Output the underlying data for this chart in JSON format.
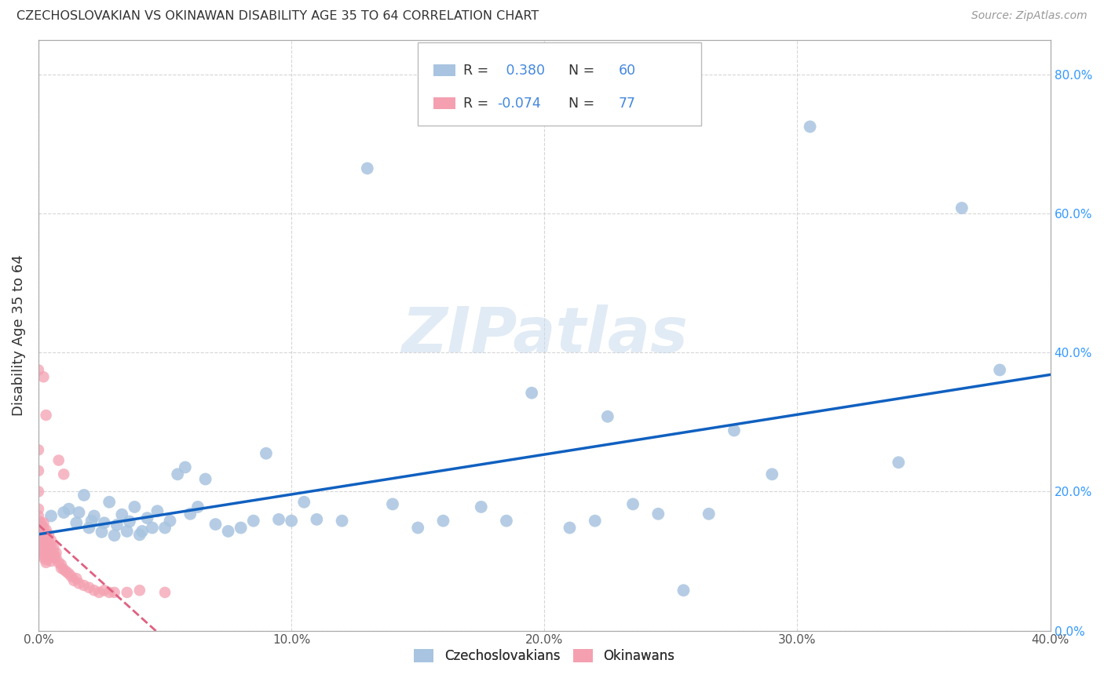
{
  "title": "CZECHOSLOVAKIAN VS OKINAWAN DISABILITY AGE 35 TO 64 CORRELATION CHART",
  "source": "Source: ZipAtlas.com",
  "ylabel": "Disability Age 35 to 64",
  "xlim": [
    0.0,
    0.4
  ],
  "ylim": [
    0.0,
    0.85
  ],
  "x_ticks": [
    0.0,
    0.1,
    0.2,
    0.3,
    0.4
  ],
  "y_ticks": [
    0.0,
    0.2,
    0.4,
    0.6,
    0.8
  ],
  "blue_R": 0.38,
  "blue_N": 60,
  "pink_R": -0.074,
  "pink_N": 77,
  "blue_color": "#a8c4e0",
  "pink_color": "#f4a0b0",
  "blue_line_color": "#1060c0",
  "pink_line_color": "#e06080",
  "r_value_color": "#4488dd",
  "watermark_color": "#c5d8ed",
  "legend_label_blue": "Czechoslovakians",
  "legend_label_pink": "Okinawans",
  "blue_x": [
    0.005,
    0.01,
    0.012,
    0.015,
    0.016,
    0.018,
    0.02,
    0.021,
    0.022,
    0.025,
    0.026,
    0.028,
    0.03,
    0.031,
    0.033,
    0.035,
    0.036,
    0.038,
    0.04,
    0.041,
    0.043,
    0.045,
    0.047,
    0.05,
    0.052,
    0.055,
    0.058,
    0.06,
    0.063,
    0.066,
    0.07,
    0.075,
    0.08,
    0.085,
    0.09,
    0.095,
    0.1,
    0.105,
    0.11,
    0.12,
    0.13,
    0.14,
    0.15,
    0.16,
    0.175,
    0.185,
    0.195,
    0.21,
    0.22,
    0.225,
    0.235,
    0.245,
    0.255,
    0.265,
    0.275,
    0.29,
    0.305,
    0.34,
    0.365,
    0.38
  ],
  "blue_y": [
    0.165,
    0.17,
    0.175,
    0.155,
    0.17,
    0.195,
    0.148,
    0.158,
    0.165,
    0.142,
    0.155,
    0.185,
    0.137,
    0.152,
    0.167,
    0.143,
    0.157,
    0.178,
    0.138,
    0.143,
    0.162,
    0.148,
    0.172,
    0.148,
    0.158,
    0.225,
    0.235,
    0.168,
    0.178,
    0.218,
    0.153,
    0.143,
    0.148,
    0.158,
    0.255,
    0.16,
    0.158,
    0.185,
    0.16,
    0.158,
    0.665,
    0.182,
    0.148,
    0.158,
    0.178,
    0.158,
    0.342,
    0.148,
    0.158,
    0.308,
    0.182,
    0.168,
    0.058,
    0.168,
    0.288,
    0.225,
    0.725,
    0.242,
    0.608,
    0.375
  ],
  "pink_x": [
    0.0,
    0.0,
    0.0,
    0.0,
    0.0,
    0.0,
    0.0,
    0.0,
    0.0,
    0.0,
    0.001,
    0.001,
    0.001,
    0.001,
    0.001,
    0.001,
    0.001,
    0.001,
    0.001,
    0.001,
    0.002,
    0.002,
    0.002,
    0.002,
    0.002,
    0.002,
    0.002,
    0.002,
    0.002,
    0.002,
    0.003,
    0.003,
    0.003,
    0.003,
    0.003,
    0.003,
    0.003,
    0.003,
    0.003,
    0.003,
    0.004,
    0.004,
    0.004,
    0.004,
    0.004,
    0.005,
    0.005,
    0.005,
    0.005,
    0.005,
    0.006,
    0.006,
    0.006,
    0.007,
    0.007,
    0.008,
    0.008,
    0.009,
    0.009,
    0.01,
    0.01,
    0.011,
    0.012,
    0.013,
    0.014,
    0.015,
    0.016,
    0.018,
    0.02,
    0.022,
    0.024,
    0.026,
    0.028,
    0.03,
    0.035,
    0.04,
    0.05
  ],
  "pink_y": [
    0.375,
    0.26,
    0.23,
    0.2,
    0.175,
    0.165,
    0.158,
    0.152,
    0.148,
    0.142,
    0.155,
    0.15,
    0.145,
    0.14,
    0.135,
    0.13,
    0.125,
    0.12,
    0.115,
    0.11,
    0.365,
    0.155,
    0.148,
    0.14,
    0.135,
    0.13,
    0.122,
    0.115,
    0.11,
    0.105,
    0.31,
    0.145,
    0.138,
    0.132,
    0.125,
    0.118,
    0.112,
    0.108,
    0.102,
    0.098,
    0.138,
    0.13,
    0.122,
    0.115,
    0.108,
    0.13,
    0.122,
    0.115,
    0.108,
    0.1,
    0.12,
    0.112,
    0.105,
    0.112,
    0.105,
    0.245,
    0.098,
    0.095,
    0.09,
    0.225,
    0.088,
    0.085,
    0.082,
    0.078,
    0.072,
    0.075,
    0.068,
    0.065,
    0.062,
    0.058,
    0.055,
    0.058,
    0.055,
    0.055,
    0.055,
    0.058,
    0.055
  ]
}
